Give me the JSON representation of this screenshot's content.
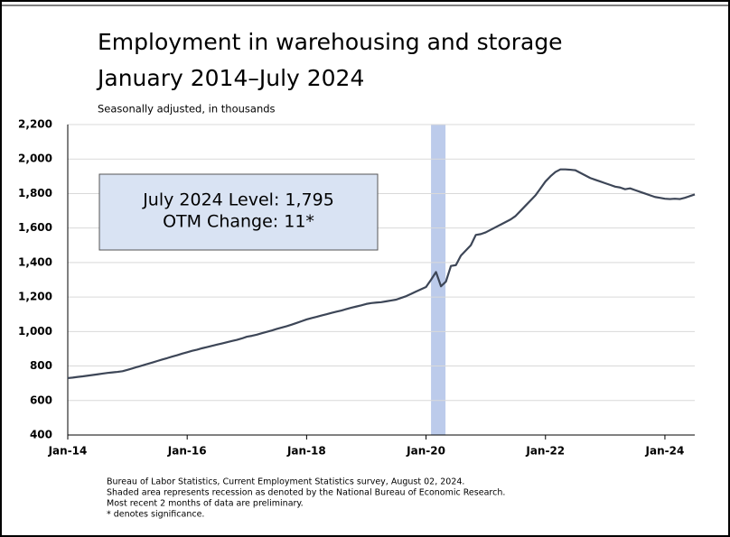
{
  "chart_data": {
    "type": "line",
    "title": "Employment in warehousing and storage",
    "subtitle_line2": "January 2014–July 2024",
    "subtitle": "Seasonally adjusted, in thousands",
    "annotations": [
      "July 2024 Level: 1,795",
      "OTM Change: 11*"
    ],
    "recession": [
      "2020-02",
      "2020-04"
    ],
    "recession_color": "#bccbeb",
    "footnotes": [
      "Bureau of Labor Statistics, Current Employment Statistics survey, August 02, 2024.",
      "Shaded area represents recession as denoted by the National Bureau of Economic Research.",
      "Most recent 2 months of data are preliminary.",
      "* denotes significance."
    ],
    "x": [
      "2014-01",
      "2014-02",
      "2014-03",
      "2014-04",
      "2014-05",
      "2014-06",
      "2014-07",
      "2014-08",
      "2014-09",
      "2014-10",
      "2014-11",
      "2014-12",
      "2015-01",
      "2015-02",
      "2015-03",
      "2015-04",
      "2015-05",
      "2015-06",
      "2015-07",
      "2015-08",
      "2015-09",
      "2015-10",
      "2015-11",
      "2015-12",
      "2016-01",
      "2016-02",
      "2016-03",
      "2016-04",
      "2016-05",
      "2016-06",
      "2016-07",
      "2016-08",
      "2016-09",
      "2016-10",
      "2016-11",
      "2016-12",
      "2017-01",
      "2017-02",
      "2017-03",
      "2017-04",
      "2017-05",
      "2017-06",
      "2017-07",
      "2017-08",
      "2017-09",
      "2017-10",
      "2017-11",
      "2017-12",
      "2018-01",
      "2018-02",
      "2018-03",
      "2018-04",
      "2018-05",
      "2018-06",
      "2018-07",
      "2018-08",
      "2018-09",
      "2018-10",
      "2018-11",
      "2018-12",
      "2019-01",
      "2019-02",
      "2019-03",
      "2019-04",
      "2019-05",
      "2019-06",
      "2019-07",
      "2019-08",
      "2019-09",
      "2019-10",
      "2019-11",
      "2019-12",
      "2020-01",
      "2020-02",
      "2020-03",
      "2020-04",
      "2020-05",
      "2020-06",
      "2020-07",
      "2020-08",
      "2020-09",
      "2020-10",
      "2020-11",
      "2020-12",
      "2021-01",
      "2021-02",
      "2021-03",
      "2021-04",
      "2021-05",
      "2021-06",
      "2021-07",
      "2021-08",
      "2021-09",
      "2021-10",
      "2021-11",
      "2021-12",
      "2022-01",
      "2022-02",
      "2022-03",
      "2022-04",
      "2022-05",
      "2022-06",
      "2022-07",
      "2022-08",
      "2022-09",
      "2022-10",
      "2022-11",
      "2022-12",
      "2023-01",
      "2023-02",
      "2023-03",
      "2023-04",
      "2023-05",
      "2023-06",
      "2023-07",
      "2023-08",
      "2023-09",
      "2023-10",
      "2023-11",
      "2023-12",
      "2024-01",
      "2024-02",
      "2024-03",
      "2024-04",
      "2024-05",
      "2024-06",
      "2024-07"
    ],
    "series": [
      {
        "name": "Employment",
        "color": "#3d4657",
        "values": [
          730,
          733,
          737,
          740,
          744,
          748,
          752,
          756,
          760,
          763,
          766,
          770,
          778,
          786,
          795,
          803,
          812,
          820,
          829,
          838,
          846,
          855,
          863,
          872,
          880,
          888,
          895,
          903,
          910,
          917,
          924,
          931,
          938,
          945,
          952,
          960,
          970,
          975,
          982,
          990,
          998,
          1006,
          1015,
          1023,
          1031,
          1040,
          1050,
          1060,
          1070,
          1078,
          1085,
          1093,
          1100,
          1108,
          1115,
          1122,
          1130,
          1138,
          1145,
          1152,
          1160,
          1165,
          1168,
          1170,
          1175,
          1180,
          1185,
          1195,
          1205,
          1218,
          1232,
          1245,
          1258,
          1300,
          1345,
          1262,
          1290,
          1380,
          1385,
          1440,
          1470,
          1500,
          1560,
          1565,
          1575,
          1590,
          1605,
          1620,
          1635,
          1650,
          1670,
          1700,
          1730,
          1760,
          1790,
          1830,
          1870,
          1900,
          1925,
          1940,
          1940,
          1938,
          1935,
          1920,
          1905,
          1890,
          1880,
          1870,
          1860,
          1850,
          1840,
          1835,
          1825,
          1830,
          1820,
          1810,
          1800,
          1790,
          1780,
          1775,
          1770,
          1768,
          1770,
          1768,
          1775,
          1785,
          1795
        ]
      }
    ],
    "xlim": [
      "2014-01",
      "2024-07"
    ],
    "xticks": [
      {
        "value": "2014-01",
        "label": "Jan-14"
      },
      {
        "value": "2016-01",
        "label": "Jan-16"
      },
      {
        "value": "2018-01",
        "label": "Jan-18"
      },
      {
        "value": "2020-01",
        "label": "Jan-20"
      },
      {
        "value": "2022-01",
        "label": "Jan-22"
      },
      {
        "value": "2024-01",
        "label": "Jan-24"
      }
    ],
    "ylim": [
      400,
      2200
    ],
    "yticks": [
      400,
      600,
      800,
      {
        "value": 1000,
        "label": "1,000"
      },
      {
        "value": 1200,
        "label": "1,200"
      },
      {
        "value": 1400,
        "label": "1,400"
      },
      {
        "value": 1600,
        "label": "1,600"
      },
      {
        "value": 1800,
        "label": "1,800"
      },
      {
        "value": 2000,
        "label": "2,000"
      },
      {
        "value": 2200,
        "label": "2,200"
      }
    ],
    "grid": true
  }
}
